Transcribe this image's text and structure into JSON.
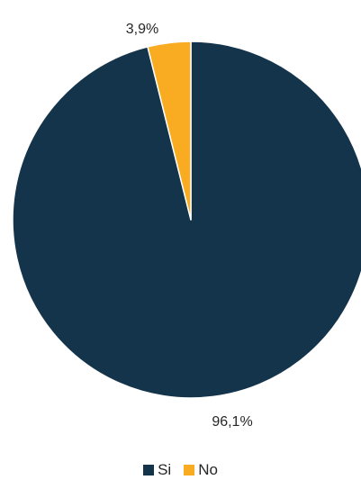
{
  "chart_data": {
    "type": "pie",
    "title": "",
    "categories": [
      "Si",
      "No"
    ],
    "values": [
      96.1,
      3.9
    ],
    "value_labels": [
      "96,1%",
      "3,9%"
    ],
    "colors": [
      "#14344b",
      "#f9ac22"
    ],
    "start": "12 o'clock",
    "direction": "clockwise",
    "legend_position": "bottom"
  }
}
